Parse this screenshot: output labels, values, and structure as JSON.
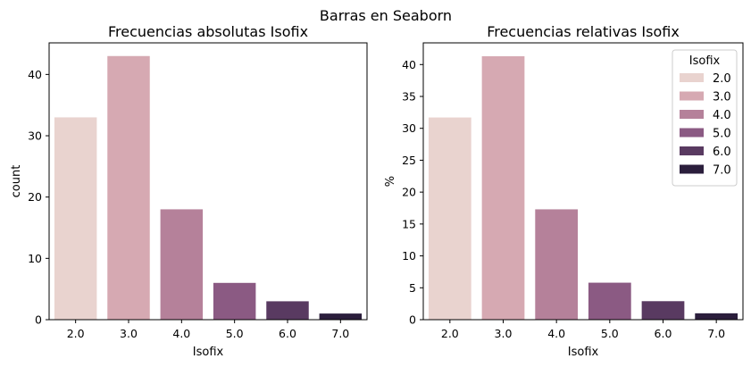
{
  "figure": {
    "suptitle": "Barras en Seaborn"
  },
  "colors": [
    "#e9d3cf",
    "#d6a9b2",
    "#b5819a",
    "#8b5a83",
    "#593a61",
    "#2b1e3c"
  ],
  "chart_data": [
    {
      "type": "bar",
      "title": "Frecuencias absolutas Isofix",
      "xlabel": "Isofix",
      "ylabel": "count",
      "categories": [
        "2.0",
        "3.0",
        "4.0",
        "5.0",
        "6.0",
        "7.0"
      ],
      "values": [
        33,
        43,
        18,
        6,
        3,
        1
      ],
      "ylim": [
        0,
        45.15
      ],
      "yticks": [
        "0",
        "10",
        "20",
        "30",
        "40"
      ],
      "grid": false,
      "legend": null
    },
    {
      "type": "bar",
      "title": "Frecuencias relativas Isofix",
      "xlabel": "Isofix",
      "ylabel": "%",
      "categories": [
        "2.0",
        "3.0",
        "4.0",
        "5.0",
        "6.0",
        "7.0"
      ],
      "values": [
        31.7,
        41.3,
        17.3,
        5.8,
        2.9,
        1.0
      ],
      "ylim": [
        0,
        43.4
      ],
      "yticks": [
        "0",
        "5",
        "10",
        "15",
        "20",
        "25",
        "30",
        "35",
        "40"
      ],
      "grid": false,
      "legend": {
        "title": "Isofix",
        "entries": [
          "2.0",
          "3.0",
          "4.0",
          "5.0",
          "6.0",
          "7.0"
        ],
        "placement": "top-right"
      }
    }
  ]
}
